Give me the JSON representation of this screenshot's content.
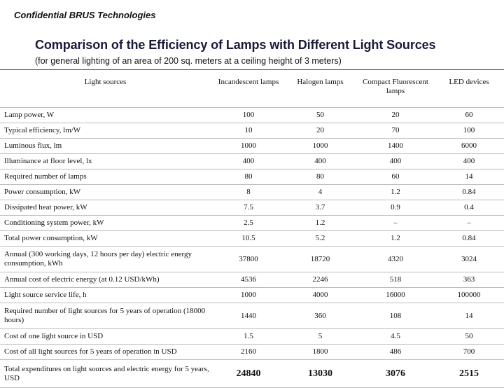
{
  "header": {
    "confidential": "Confidential  BRUS Technologies",
    "title": "Comparison of the Efficiency of Lamps  with Different Light Sources",
    "subtitle": "(for general lighting of an area of 200 sq. meters at a ceiling height of 3 meters)"
  },
  "table": {
    "columns": [
      "Light sources",
      "Incandescent lamps",
      "Halogen lamps",
      "Compact Fluorescent lamps",
      "LED devices"
    ],
    "rows": [
      {
        "label": "Lamp power, W",
        "values": [
          "100",
          "50",
          "20",
          "60"
        ]
      },
      {
        "label": "Typical efficiency, lm/W",
        "values": [
          "10",
          "20",
          "70",
          "100"
        ]
      },
      {
        "label": "Luminous flux, lm",
        "values": [
          "1000",
          "1000",
          "1400",
          "6000"
        ]
      },
      {
        "label": "Illuminance at floor level, lx",
        "values": [
          "400",
          "400",
          "400",
          "400"
        ]
      },
      {
        "label": "Required number of lamps",
        "values": [
          "80",
          "80",
          "60",
          "14"
        ]
      },
      {
        "label": "Power consumption, kW",
        "values": [
          "8",
          "4",
          "1.2",
          "0.84"
        ]
      },
      {
        "label": "Dissipated heat power, kW",
        "values": [
          "7.5",
          "3.7",
          "0.9",
          "0.4"
        ]
      },
      {
        "label": "Conditioning system power, kW",
        "values": [
          "2.5",
          "1.2",
          "–",
          "–"
        ]
      },
      {
        "label": "Total power consumption, kW",
        "values": [
          "10.5",
          "5.2",
          "1.2",
          "0.84"
        ]
      },
      {
        "label": "Annual (300 working days, 12 hours per day) electric energy consumption, kWh",
        "values": [
          "37800",
          "18720",
          "4320",
          "3024"
        ]
      },
      {
        "label": "Annual cost of electric energy (at 0.12 USD/kWh)",
        "values": [
          "4536",
          "2246",
          "518",
          "363"
        ]
      },
      {
        "label": "Light source service life, h",
        "values": [
          "1000",
          "4000",
          "16000",
          "100000"
        ]
      },
      {
        "label": "Required number of light sources for 5 years of operation (18000 hours)",
        "values": [
          "1440",
          "360",
          "108",
          "14"
        ]
      },
      {
        "label": "Cost of one light source in USD",
        "values": [
          "1.5",
          "5",
          "4.5",
          "50"
        ]
      },
      {
        "label": "Cost of all light sources for 5 years of operation in USD",
        "values": [
          "2160",
          "1800",
          "486",
          "700"
        ]
      },
      {
        "label": "Total expenditures on light sources and electric energy for 5 years, USD",
        "values": [
          "24840",
          "13030",
          "3076",
          "2515"
        ]
      }
    ]
  }
}
